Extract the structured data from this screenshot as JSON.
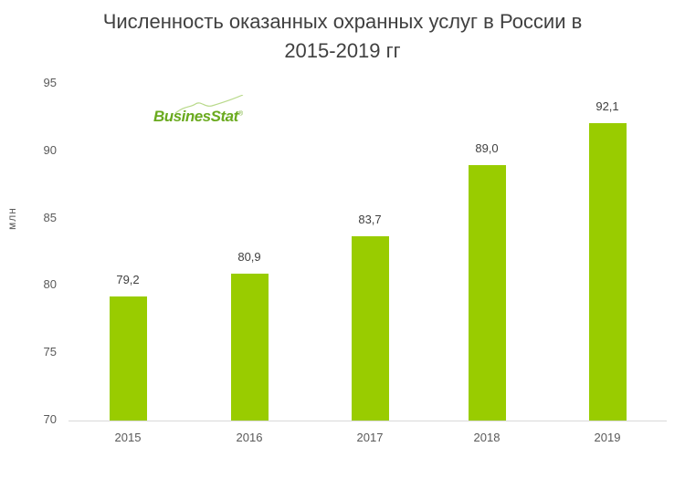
{
  "title_line1": "Численность оказанных охранных услуг в России в",
  "title_line2": "2015-2019 гг",
  "logo": {
    "text": "BusinesStat",
    "mark": "®"
  },
  "colors": {
    "bar": "#99cc00",
    "logo": "#6aaa1e"
  },
  "chart_data": {
    "type": "bar",
    "title": "Численность оказанных охранных услуг в России в 2015-2019 гг",
    "xlabel": "",
    "ylabel": "млн",
    "categories": [
      "2015",
      "2016",
      "2017",
      "2018",
      "2019"
    ],
    "values": [
      79.2,
      80.9,
      83.7,
      89.0,
      92.1
    ],
    "value_labels": [
      "79,2",
      "80,9",
      "83,7",
      "89,0",
      "92,1"
    ],
    "ylim": [
      70,
      95
    ],
    "yticks": [
      "70",
      "75",
      "80",
      "85",
      "90",
      "95"
    ],
    "grid": false,
    "legend": "none"
  }
}
